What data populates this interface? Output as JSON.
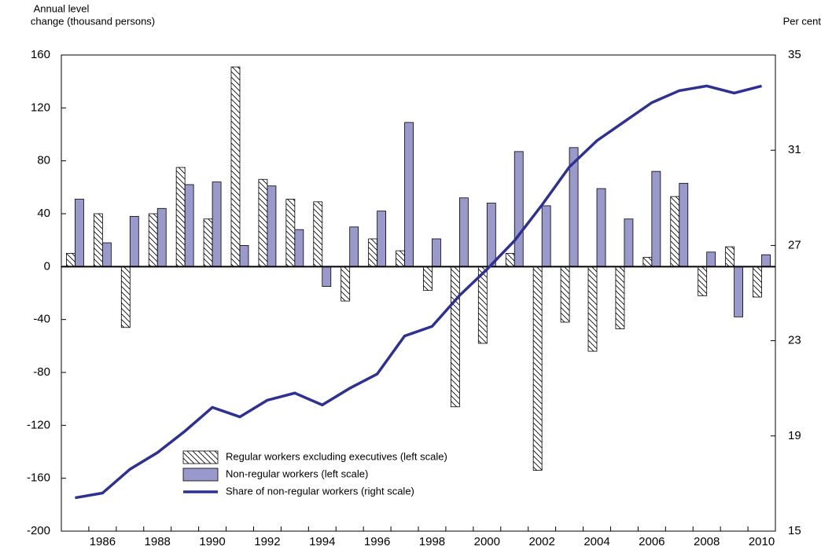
{
  "chart_data": {
    "type": "bar_line",
    "y_label": [
      "Annual level",
      "change (thousand persons)"
    ],
    "y2_label": "Per cent",
    "categories": [
      null,
      "1986",
      null,
      "1988",
      null,
      "1990",
      null,
      "1992",
      null,
      "1994",
      null,
      "1996",
      null,
      "1998",
      null,
      "2000",
      null,
      "2002",
      null,
      "2004",
      null,
      "2006",
      null,
      "2008",
      null,
      "2010"
    ],
    "series": [
      {
        "name": "Regular workers excluding executives (left scale)",
        "color": "#ffffff",
        "pattern": "hatch",
        "values": [
          10,
          40,
          -46,
          40,
          75,
          36,
          151,
          66,
          51,
          49,
          -26,
          21,
          12,
          -18,
          -106,
          -58,
          10,
          -154,
          -42,
          -64,
          -47,
          7,
          53,
          -22,
          15,
          -23
        ]
      },
      {
        "name": "Non-regular workers (left scale)",
        "color": "#9999cc",
        "values": [
          51,
          18,
          38,
          44,
          62,
          64,
          16,
          61,
          28,
          -15,
          30,
          42,
          109,
          21,
          52,
          48,
          87,
          46,
          90,
          59,
          36,
          72,
          63,
          11,
          -38,
          9
        ]
      },
      {
        "name": "Share of non-regular workers (right scale)",
        "color": "#2e3192",
        "axis": "y2",
        "type": "line",
        "values": [
          16.4,
          16.6,
          17.6,
          18.3,
          19.2,
          20.2,
          19.8,
          20.5,
          20.8,
          20.3,
          21.0,
          21.6,
          23.2,
          23.6,
          24.9,
          26.0,
          27.2,
          28.7,
          30.3,
          31.4,
          32.2,
          33.0,
          33.5,
          33.7,
          33.4,
          33.7
        ]
      }
    ],
    "ylim": [
      -200,
      160
    ],
    "yticks": [
      -200,
      -160,
      -120,
      -80,
      -40,
      0,
      40,
      80,
      120,
      160
    ],
    "y2lim": [
      15,
      35
    ],
    "y2ticks": [
      15,
      19,
      23,
      27,
      31,
      35
    ],
    "legend": "lower-left"
  }
}
